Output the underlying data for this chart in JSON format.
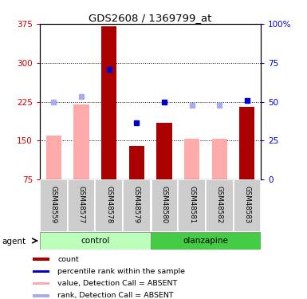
{
  "title": "GDS2608 / 1369799_at",
  "samples": [
    "GSM48559",
    "GSM48577",
    "GSM48578",
    "GSM48579",
    "GSM48580",
    "GSM48581",
    "GSM48582",
    "GSM48583"
  ],
  "red_bar_values": [
    null,
    null,
    370,
    140,
    185,
    null,
    null,
    215
  ],
  "pink_bar_values": [
    160,
    220,
    null,
    null,
    null,
    153,
    153,
    null
  ],
  "blue_square_values": [
    null,
    null,
    288,
    185,
    225,
    null,
    null,
    228
  ],
  "lavender_square_values": [
    225,
    235,
    null,
    null,
    null,
    218,
    218,
    null
  ],
  "ylim": [
    75,
    375
  ],
  "yticks": [
    75,
    150,
    225,
    300,
    375
  ],
  "y2ticks": [
    0,
    25,
    50,
    75,
    100
  ],
  "y2ticklabels": [
    "0",
    "25",
    "50",
    "75",
    "100%"
  ],
  "y2lim": [
    0,
    100
  ],
  "gridlines": [
    150,
    225,
    300
  ],
  "red_color": "#aa0000",
  "pink_color": "#ffaaaa",
  "blue_color": "#0000cc",
  "lavender_color": "#aaaaee",
  "control_green_light": "#bbffbb",
  "olanzapine_green": "#44cc44",
  "label_color_left": "#cc0000",
  "label_color_right": "#0000cc",
  "legend_items": [
    "count",
    "percentile rank within the sample",
    "value, Detection Call = ABSENT",
    "rank, Detection Call = ABSENT"
  ],
  "legend_colors": [
    "#aa0000",
    "#0000cc",
    "#ffaaaa",
    "#aaaaee"
  ],
  "bar_width": 0.55
}
